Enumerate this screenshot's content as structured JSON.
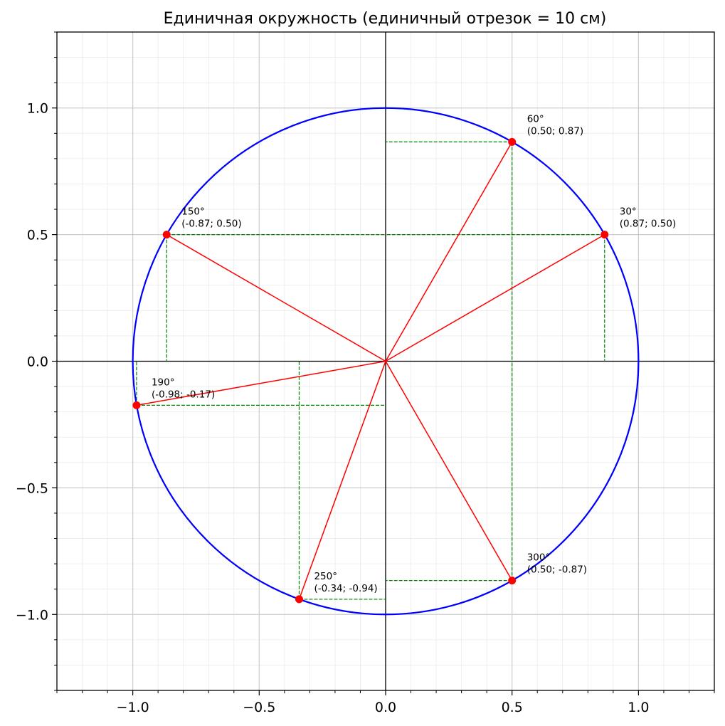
{
  "chart_data": {
    "type": "scatter",
    "title": "Единичная окружность (единичный отрезок = 10 см)",
    "xlim": [
      -1.3,
      1.3
    ],
    "ylim": [
      -1.3,
      1.3
    ],
    "x_ticks": [
      {
        "value": -1.0,
        "label": "−1.0"
      },
      {
        "value": -0.5,
        "label": "−0.5"
      },
      {
        "value": 0.0,
        "label": "0.0"
      },
      {
        "value": 0.5,
        "label": "0.5"
      },
      {
        "value": 1.0,
        "label": "1.0"
      }
    ],
    "y_ticks": [
      {
        "value": -1.0,
        "label": "−1.0"
      },
      {
        "value": -0.5,
        "label": "−0.5"
      },
      {
        "value": 0.0,
        "label": "0.0"
      },
      {
        "value": 0.5,
        "label": "0.5"
      },
      {
        "value": 1.0,
        "label": "1.0"
      }
    ],
    "grid": true,
    "minor_grid_step": 0.1,
    "circle": {
      "center": [
        0,
        0
      ],
      "radius": 1,
      "color": "#0000ff"
    },
    "points": [
      {
        "angle_label": "30°",
        "coord_label": "(0.87; 0.50)",
        "x": 0.866,
        "y": 0.5
      },
      {
        "angle_label": "60°",
        "coord_label": "(0.50; 0.87)",
        "x": 0.5,
        "y": 0.866
      },
      {
        "angle_label": "150°",
        "coord_label": "(-0.87; 0.50)",
        "x": -0.866,
        "y": 0.5
      },
      {
        "angle_label": "190°",
        "coord_label": "(-0.98; -0.17)",
        "x": -0.985,
        "y": -0.174
      },
      {
        "angle_label": "250°",
        "coord_label": "(-0.34; -0.94)",
        "x": -0.342,
        "y": -0.94
      },
      {
        "angle_label": "300°",
        "coord_label": "(0.50; -0.87)",
        "x": 0.5,
        "y": -0.866
      }
    ],
    "colors": {
      "circle": "#0000ff",
      "radius": "#ff0000",
      "point": "#ff0000",
      "projection": "#008000",
      "axes": "#000000",
      "major_grid": "#cccccc",
      "minor_grid": "#ebebeb"
    }
  }
}
